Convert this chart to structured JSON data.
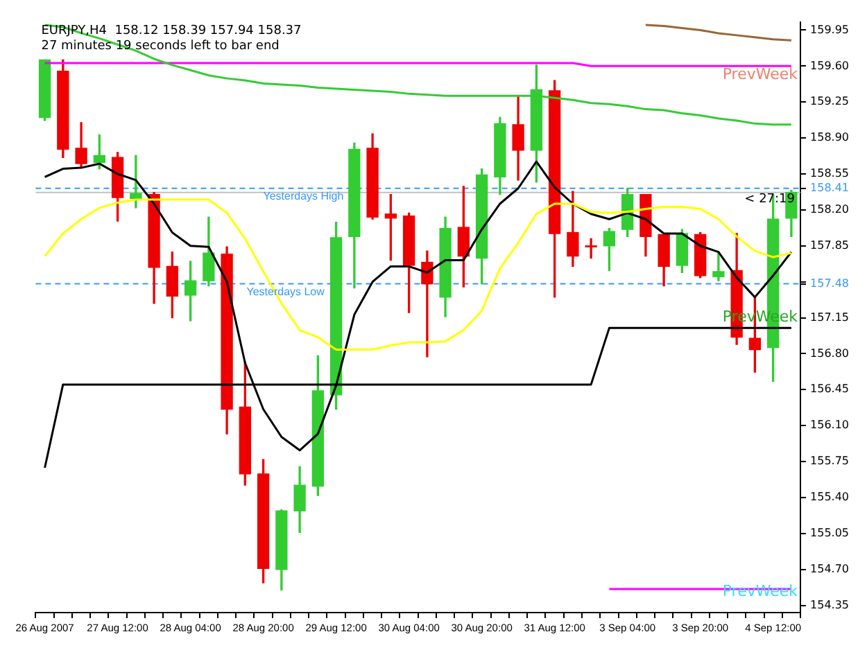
{
  "chart_data": {
    "type": "candlestick",
    "categories": [
      "26 Aug 2007",
      null,
      null,
      null,
      "27 Aug 12:00",
      null,
      null,
      null,
      "28 Aug 04:00",
      null,
      null,
      null,
      "28 Aug 20:00",
      null,
      null,
      null,
      "29 Aug 12:00",
      null,
      null,
      null,
      "30 Aug 04:00",
      null,
      null,
      null,
      "30 Aug 20:00",
      null,
      null,
      null,
      "31 Aug 12:00",
      null,
      null,
      null,
      "3 Sep 04:00",
      null,
      null,
      null,
      "3 Sep 20:00",
      null,
      null,
      null,
      "4 Sep 12:00",
      null
    ],
    "ohlc": [
      [
        159.1,
        159.66,
        159.07,
        159.66
      ],
      [
        159.55,
        159.66,
        158.71,
        158.79
      ],
      [
        158.8,
        159.05,
        158.61,
        158.65
      ],
      [
        158.66,
        158.93,
        158.6,
        158.73
      ],
      [
        158.71,
        158.76,
        158.09,
        158.32
      ],
      [
        158.31,
        158.73,
        158.22,
        158.36
      ],
      [
        158.35,
        158.37,
        157.29,
        157.64
      ],
      [
        157.65,
        157.79,
        157.15,
        157.36
      ],
      [
        157.37,
        157.7,
        157.12,
        157.51
      ],
      [
        157.51,
        158.13,
        157.46,
        157.78
      ],
      [
        157.77,
        157.84,
        156.02,
        156.26
      ],
      [
        156.28,
        156.72,
        155.52,
        155.63
      ],
      [
        155.63,
        155.77,
        154.57,
        154.71
      ],
      [
        154.7,
        155.28,
        154.5,
        155.27
      ],
      [
        155.27,
        155.7,
        155.06,
        155.52
      ],
      [
        155.51,
        156.78,
        155.42,
        156.44
      ],
      [
        156.4,
        158.08,
        156.26,
        157.93
      ],
      [
        157.94,
        158.85,
        157.44,
        158.79
      ],
      [
        158.8,
        158.94,
        158.11,
        158.13
      ],
      [
        158.16,
        158.35,
        157.71,
        158.12
      ],
      [
        158.14,
        158.17,
        157.2,
        157.66
      ],
      [
        157.69,
        157.8,
        156.77,
        157.48
      ],
      [
        157.35,
        158.13,
        157.16,
        158.02
      ],
      [
        158.03,
        158.43,
        157.45,
        157.75
      ],
      [
        157.73,
        158.6,
        157.48,
        158.54
      ],
      [
        158.52,
        159.1,
        158.35,
        159.04
      ],
      [
        159.03,
        159.31,
        158.49,
        158.78
      ],
      [
        158.78,
        159.61,
        158.47,
        159.37
      ],
      [
        159.36,
        159.46,
        157.35,
        157.97
      ],
      [
        157.98,
        158.38,
        157.65,
        157.75
      ],
      [
        157.85,
        157.92,
        157.73,
        157.84
      ],
      [
        157.85,
        158.02,
        157.61,
        157.99
      ],
      [
        158.01,
        158.41,
        157.94,
        158.35
      ],
      [
        158.35,
        158.35,
        157.75,
        157.94
      ],
      [
        157.96,
        157.97,
        157.46,
        157.65
      ],
      [
        157.66,
        158.01,
        157.59,
        157.97
      ],
      [
        157.96,
        157.98,
        157.54,
        157.56
      ],
      [
        157.55,
        157.79,
        157.51,
        157.6
      ],
      [
        157.61,
        157.97,
        156.89,
        156.96
      ],
      [
        156.95,
        157.35,
        156.62,
        156.84
      ],
      [
        156.86,
        158.35,
        156.53,
        158.11
      ],
      [
        158.12,
        158.39,
        157.94,
        158.37
      ]
    ],
    "colors": [
      "#33cc33",
      "#ee0000",
      "#ee0000",
      "#33cc33",
      "#ee0000",
      "#33cc33",
      "#ee0000",
      "#ee0000",
      "#33cc33",
      "#33cc33",
      "#ee0000",
      "#ee0000",
      "#ee0000",
      "#33cc33",
      "#33cc33",
      "#33cc33",
      "#33cc33",
      "#33cc33",
      "#ee0000",
      "#ee0000",
      "#ee0000",
      "#ee0000",
      "#33cc33",
      "#ee0000",
      "#33cc33",
      "#33cc33",
      "#ee0000",
      "#33cc33",
      "#ee0000",
      "#ee0000",
      "#ee0000",
      "#33cc33",
      "#33cc33",
      "#ee0000",
      "#ee0000",
      "#33cc33",
      "#ee0000",
      "#33cc33",
      "#ee0000",
      "#ee0000",
      "#33cc33",
      "#33cc33"
    ],
    "series": [
      {
        "type": "line",
        "color": "#33cc33",
        "values": [
          160.0,
          159.98,
          159.92,
          159.87,
          159.81,
          159.75,
          159.67,
          159.61,
          159.56,
          159.51,
          159.48,
          159.46,
          159.43,
          159.42,
          159.41,
          159.39,
          159.38,
          159.37,
          159.36,
          159.35,
          159.33,
          159.32,
          159.31,
          159.31,
          159.31,
          159.31,
          159.31,
          159.31,
          159.29,
          159.27,
          159.24,
          159.23,
          159.21,
          159.18,
          159.17,
          159.14,
          159.12,
          159.09,
          159.07,
          159.04,
          159.03,
          159.03
        ]
      },
      {
        "type": "line",
        "color": "#ff00ff",
        "values": [
          159.63,
          159.63,
          159.63,
          159.63,
          159.63,
          159.63,
          159.63,
          159.63,
          159.63,
          159.63,
          159.63,
          159.63,
          159.63,
          159.63,
          159.63,
          159.63,
          159.63,
          159.63,
          159.63,
          159.63,
          159.63,
          159.63,
          159.63,
          159.63,
          159.63,
          159.63,
          159.63,
          159.63,
          159.63,
          159.63,
          159.6,
          159.6,
          159.6,
          159.6,
          159.6,
          159.6,
          159.6,
          159.6,
          159.6,
          159.6,
          159.6,
          159.6
        ]
      },
      {
        "type": "line",
        "color": "#ff00ff",
        "values": [
          null,
          null,
          null,
          null,
          null,
          null,
          null,
          null,
          null,
          null,
          null,
          null,
          null,
          null,
          null,
          null,
          null,
          null,
          null,
          null,
          null,
          null,
          null,
          null,
          null,
          null,
          null,
          null,
          null,
          null,
          null,
          154.51,
          154.51,
          154.51,
          154.51,
          154.51,
          154.51,
          154.51,
          154.51,
          154.51,
          154.51,
          154.51
        ]
      },
      {
        "type": "line",
        "color": "#996633",
        "values": [
          null,
          null,
          null,
          null,
          null,
          null,
          null,
          null,
          null,
          null,
          null,
          null,
          null,
          null,
          null,
          null,
          null,
          null,
          null,
          null,
          null,
          null,
          null,
          null,
          null,
          null,
          null,
          null,
          null,
          null,
          null,
          null,
          null,
          160.0,
          159.99,
          159.97,
          159.95,
          159.92,
          159.9,
          159.88,
          159.86,
          159.85
        ]
      },
      {
        "type": "line",
        "color": "#000000",
        "values": [
          155.69,
          156.5,
          156.5,
          156.5,
          156.5,
          156.5,
          156.5,
          156.5,
          156.5,
          156.5,
          156.5,
          156.5,
          156.5,
          156.5,
          156.5,
          156.5,
          156.5,
          156.5,
          156.5,
          156.5,
          156.5,
          156.5,
          156.5,
          156.5,
          156.5,
          156.5,
          156.5,
          156.5,
          156.5,
          156.5,
          156.5,
          157.05,
          157.05,
          157.05,
          157.05,
          157.05,
          157.05,
          157.05,
          157.05,
          157.05,
          157.05,
          157.05
        ]
      },
      {
        "type": "line",
        "color": "#ffff00",
        "values": [
          157.75,
          157.97,
          158.11,
          158.22,
          158.27,
          158.3,
          158.3,
          158.3,
          158.3,
          158.3,
          158.17,
          157.92,
          157.6,
          157.29,
          157.03,
          156.96,
          156.84,
          156.84,
          156.84,
          156.88,
          156.91,
          156.91,
          156.92,
          157.03,
          157.22,
          157.63,
          157.88,
          158.16,
          158.26,
          158.26,
          158.18,
          158.17,
          158.18,
          158.21,
          158.23,
          158.23,
          158.21,
          158.11,
          157.94,
          157.8,
          157.74,
          157.78
        ]
      },
      {
        "type": "line",
        "color": "#000000",
        "values": [
          158.52,
          158.6,
          158.61,
          158.65,
          158.55,
          158.49,
          158.26,
          157.98,
          157.85,
          157.84,
          157.5,
          156.71,
          156.26,
          155.99,
          155.86,
          156.02,
          156.49,
          157.18,
          157.5,
          157.65,
          157.65,
          157.59,
          157.71,
          157.71,
          158.01,
          158.26,
          158.41,
          158.67,
          158.42,
          158.26,
          158.16,
          158.11,
          158.17,
          158.11,
          157.97,
          157.97,
          157.85,
          157.79,
          157.54,
          157.35,
          157.56,
          157.79
        ]
      }
    ],
    "ylim": [
      154.28,
      160.03
    ],
    "yticks": [
      159.95,
      {
        "value": 159.6,
        "label": "159.60"
      },
      159.25,
      {
        "value": 158.9,
        "label": "158.90"
      },
      158.55,
      {
        "value": 158.2,
        "label": "158.20"
      },
      {
        "value": 158.41,
        "label": "158.41"
      },
      157.85,
      {
        "value": 157.5,
        "label": null
      },
      157.48,
      157.15,
      {
        "value": 156.8,
        "label": "156.80"
      },
      156.45,
      {
        "value": 156.1,
        "label": "156.10"
      },
      155.75,
      {
        "value": 155.4,
        "label": "155.40"
      },
      155.05,
      {
        "value": 154.7,
        "label": "154.70"
      },
      154.35
    ],
    "ref_lines": [
      {
        "axis": "y",
        "value": 158.41,
        "label": "Yesterdays High",
        "color": "#3399ff",
        "line_style": "dashed"
      },
      {
        "axis": "y",
        "value": 157.48,
        "label": "Yesterdays Low",
        "color": "#3399ff",
        "line_style": "dashed"
      },
      {
        "axis": "y",
        "value": 158.37,
        "color": "#c0c0c0",
        "line_style": "solid"
      }
    ],
    "annotations": [
      "EURJPY,H4  158.12 158.39 157.94 158.37",
      "27 minutes 19 seconds left to bar end",
      {
        "text": "< 27:19",
        "y": 158.37
      },
      "PrevWeek",
      "PrevWeek",
      "PrevWeek"
    ],
    "marker": "none",
    "grid": false,
    "legend": false
  }
}
